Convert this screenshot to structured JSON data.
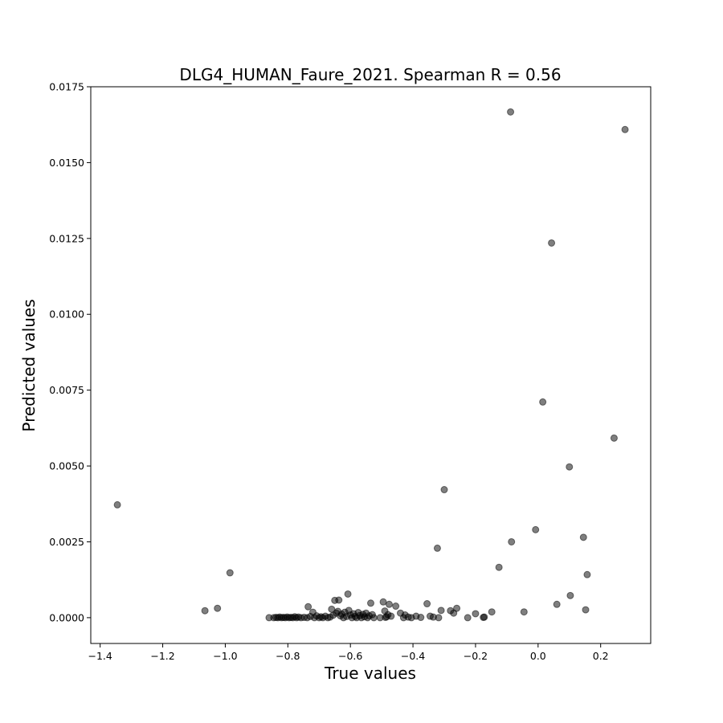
{
  "chart_data": {
    "type": "scatter",
    "title": "DLG4_HUMAN_Faure_2021. Spearman R = 0.56",
    "xlabel": "True values",
    "ylabel": "Predicted values",
    "xlim": [
      -1.43,
      0.36
    ],
    "ylim": [
      -0.00085,
      0.0175
    ],
    "xticks": [
      -1.4,
      -1.2,
      -1.0,
      -0.8,
      -0.6,
      -0.4,
      -0.2,
      0.0,
      0.2
    ],
    "xtick_labels": [
      "−1.4",
      "−1.2",
      "−1.0",
      "−0.8",
      "−0.6",
      "−0.4",
      "−0.2",
      "0.0",
      "0.2"
    ],
    "yticks": [
      0.0,
      0.0025,
      0.005,
      0.0075,
      0.01,
      0.0125,
      0.015,
      0.0175
    ],
    "ytick_labels": [
      "0.0000",
      "0.0025",
      "0.0050",
      "0.0075",
      "0.0100",
      "0.0125",
      "0.0150",
      "0.0175"
    ],
    "grid": false,
    "marker_color": "#000000",
    "marker_alpha": 0.5,
    "points": [
      [
        -1.345,
        0.00372
      ],
      [
        -1.065,
        0.00023
      ],
      [
        -1.025,
        0.00031
      ],
      [
        -0.985,
        0.00148
      ],
      [
        -0.86,
        0.0
      ],
      [
        -0.845,
        0.0
      ],
      [
        -0.838,
        1e-05
      ],
      [
        -0.832,
        0.0
      ],
      [
        -0.826,
        2e-05
      ],
      [
        -0.82,
        0.0
      ],
      [
        -0.814,
        1e-05
      ],
      [
        -0.808,
        0.0
      ],
      [
        -0.802,
        2e-05
      ],
      [
        -0.796,
        0.0
      ],
      [
        -0.79,
        1e-05
      ],
      [
        -0.784,
        0.0
      ],
      [
        -0.778,
        3e-05
      ],
      [
        -0.772,
        0.0
      ],
      [
        -0.766,
        2e-05
      ],
      [
        -0.758,
        0.0
      ],
      [
        -0.748,
        1e-05
      ],
      [
        -0.738,
        0.0
      ],
      [
        -0.735,
        0.00036
      ],
      [
        -0.728,
        4e-05
      ],
      [
        -0.72,
        0.00018
      ],
      [
        -0.715,
        0.0
      ],
      [
        -0.708,
        6e-05
      ],
      [
        -0.7,
        0.0
      ],
      [
        -0.694,
        3e-05
      ],
      [
        -0.688,
        0.0
      ],
      [
        -0.68,
        5e-05
      ],
      [
        -0.672,
        0.0
      ],
      [
        -0.665,
        2e-05
      ],
      [
        -0.66,
        0.00028
      ],
      [
        -0.655,
        8e-05
      ],
      [
        -0.65,
        0.00057
      ],
      [
        -0.645,
        0.00015
      ],
      [
        -0.64,
        0.00021
      ],
      [
        -0.637,
        0.00058
      ],
      [
        -0.632,
        6e-05
      ],
      [
        -0.628,
        0.00012
      ],
      [
        -0.622,
        0.0
      ],
      [
        -0.618,
        0.00018
      ],
      [
        -0.612,
        4e-05
      ],
      [
        -0.608,
        0.00078
      ],
      [
        -0.605,
        0.00024
      ],
      [
        -0.6,
        9e-05
      ],
      [
        -0.595,
        0.0
      ],
      [
        -0.59,
        0.00013
      ],
      [
        -0.585,
        4e-05
      ],
      [
        -0.58,
        0.0
      ],
      [
        -0.575,
        0.00017
      ],
      [
        -0.57,
        7e-05
      ],
      [
        -0.565,
        0.0
      ],
      [
        -0.56,
        0.00011
      ],
      [
        -0.555,
        3e-05
      ],
      [
        -0.55,
        0.00015
      ],
      [
        -0.545,
        0.0
      ],
      [
        -0.54,
        6e-05
      ],
      [
        -0.535,
        0.00048
      ],
      [
        -0.53,
        0.0001
      ],
      [
        -0.525,
        0.0
      ],
      [
        -0.505,
        0.0
      ],
      [
        -0.495,
        0.00052
      ],
      [
        -0.49,
        0.00022
      ],
      [
        -0.488,
        1e-05
      ],
      [
        -0.484,
        3e-05
      ],
      [
        -0.48,
        0.0001
      ],
      [
        -0.476,
        0.00044
      ],
      [
        -0.47,
        5e-05
      ],
      [
        -0.455,
        0.00038
      ],
      [
        -0.44,
        0.00015
      ],
      [
        -0.43,
        0.0
      ],
      [
        -0.425,
        9e-05
      ],
      [
        -0.415,
        2e-05
      ],
      [
        -0.405,
        0.0
      ],
      [
        -0.39,
        5e-05
      ],
      [
        -0.375,
        1e-05
      ],
      [
        -0.355,
        0.00046
      ],
      [
        -0.345,
        5e-05
      ],
      [
        -0.335,
        2e-05
      ],
      [
        -0.322,
        0.00229
      ],
      [
        -0.318,
        0.0
      ],
      [
        -0.31,
        0.00024
      ],
      [
        -0.3,
        0.00422
      ],
      [
        -0.28,
        0.00023
      ],
      [
        -0.27,
        0.00015
      ],
      [
        -0.26,
        0.00031
      ],
      [
        -0.225,
        0.0
      ],
      [
        -0.2,
        0.00013
      ],
      [
        -0.175,
        1e-05
      ],
      [
        -0.172,
        2e-05
      ],
      [
        -0.148,
        0.00019
      ],
      [
        -0.125,
        0.00166
      ],
      [
        -0.088,
        0.01667
      ],
      [
        -0.085,
        0.0025
      ],
      [
        -0.045,
        0.00019
      ],
      [
        -0.008,
        0.0029
      ],
      [
        0.015,
        0.00711
      ],
      [
        0.043,
        0.01235
      ],
      [
        0.06,
        0.00044
      ],
      [
        0.1,
        0.00497
      ],
      [
        0.103,
        0.00073
      ],
      [
        0.145,
        0.00265
      ],
      [
        0.152,
        0.00026
      ],
      [
        0.157,
        0.00142
      ],
      [
        0.243,
        0.00592
      ],
      [
        0.278,
        0.01609
      ]
    ]
  }
}
